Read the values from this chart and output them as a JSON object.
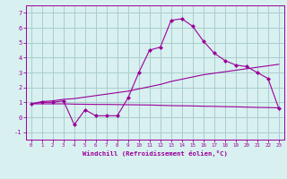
{
  "xlabel": "Windchill (Refroidissement éolien,°C)",
  "x_values": [
    0,
    1,
    2,
    3,
    4,
    5,
    6,
    7,
    8,
    9,
    10,
    11,
    12,
    13,
    14,
    15,
    16,
    17,
    18,
    19,
    20,
    21,
    22,
    23
  ],
  "y_main": [
    0.9,
    1.0,
    1.0,
    1.1,
    -0.5,
    0.5,
    0.1,
    0.1,
    0.1,
    1.3,
    3.0,
    4.5,
    4.7,
    6.5,
    6.6,
    6.1,
    5.1,
    4.3,
    3.8,
    3.5,
    3.4,
    3.0,
    2.6,
    0.6
  ],
  "y_line1": [
    0.9,
    1.05,
    1.1,
    1.2,
    1.25,
    1.35,
    1.45,
    1.55,
    1.65,
    1.75,
    1.9,
    2.05,
    2.2,
    2.4,
    2.55,
    2.7,
    2.85,
    2.95,
    3.05,
    3.15,
    3.25,
    3.35,
    3.45,
    3.55
  ],
  "y_line2": [
    0.9,
    0.9,
    0.9,
    0.9,
    0.88,
    0.87,
    0.86,
    0.86,
    0.85,
    0.84,
    0.83,
    0.82,
    0.8,
    0.78,
    0.77,
    0.76,
    0.74,
    0.73,
    0.71,
    0.7,
    0.68,
    0.66,
    0.65,
    0.63
  ],
  "line_color": "#990099",
  "bg_color": "#d8f0f0",
  "grid_color": "#aacccc",
  "ylim": [
    -1.5,
    7.5
  ],
  "yticks": [
    -1,
    0,
    1,
    2,
    3,
    4,
    5,
    6,
    7
  ],
  "xlim": [
    -0.5,
    23.5
  ]
}
